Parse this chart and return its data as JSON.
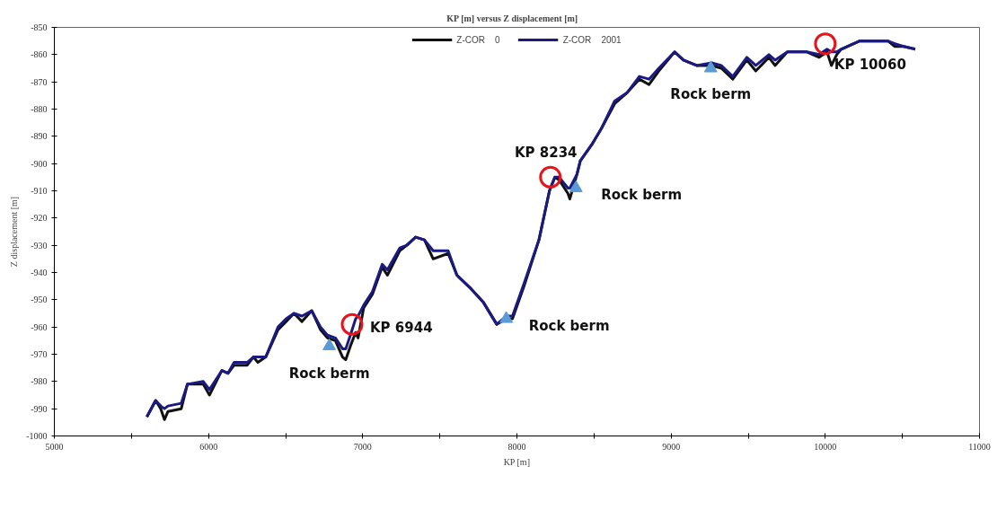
{
  "chart_data": {
    "type": "line",
    "title": "KP [m]   versus   Z displacement [m]",
    "xlabel": "KP [m]",
    "ylabel": "Z displacement [m]",
    "xlim": [
      5000,
      11000
    ],
    "ylim": [
      -1000,
      -850
    ],
    "xticks": [
      5000,
      {
        "value": 5500,
        "label": null
      },
      6000,
      {
        "value": 6500,
        "label": null
      },
      7000,
      {
        "value": 7500,
        "label": null
      },
      8000,
      {
        "value": 8500,
        "label": null
      },
      9000,
      {
        "value": 9500,
        "label": null
      },
      10000,
      {
        "value": 10500,
        "label": null
      },
      11000
    ],
    "yticks": [
      -1000,
      -990,
      -980,
      -970,
      -960,
      -950,
      -940,
      -930,
      -920,
      -910,
      -900,
      -890,
      -880,
      -870,
      -860,
      -850
    ],
    "grid": false,
    "legend": "top",
    "line_style": "solid",
    "x": [
      5600,
      5657,
      5690,
      5714,
      5737,
      5823,
      5863,
      5966,
      6006,
      6086,
      6126,
      6166,
      6251,
      6291,
      6320,
      6371,
      6451,
      6503,
      6554,
      6606,
      6669,
      6726,
      6771,
      6823,
      6869,
      6890,
      6920,
      6954,
      6970,
      7006,
      7063,
      7126,
      7160,
      7240,
      7286,
      7343,
      7400,
      7457,
      7554,
      7611,
      7703,
      7783,
      7869,
      7931,
      7971,
      8046,
      8143,
      8211,
      8246,
      8274,
      8331,
      8343,
      8389,
      8411,
      8486,
      8549,
      8634,
      8714,
      8794,
      8857,
      8920,
      9023,
      9080,
      9166,
      9263,
      9326,
      9400,
      9491,
      9549,
      9634,
      9674,
      9754,
      9880,
      9960,
      10011,
      10040,
      10074,
      10103,
      10223,
      10309,
      10406,
      10451,
      10509,
      10583
    ],
    "series": [
      {
        "name": "Z-COR    0",
        "color": "#111111",
        "values": [
          -993,
          -987,
          -990,
          -994,
          -991,
          -990,
          -981,
          -981,
          -985,
          -976,
          -977,
          -974,
          -974,
          -971,
          -973,
          -971,
          -961,
          -958,
          -955,
          -958,
          -954,
          -961,
          -964,
          -965,
          -971,
          -972,
          -967,
          -962,
          -964,
          -953,
          -948,
          -938,
          -941,
          -932,
          -930,
          -927,
          -928,
          -935,
          -933,
          -941,
          -946,
          -951,
          -959,
          -957,
          -957,
          -945,
          -928,
          -910,
          -905,
          -906,
          -911,
          -913,
          -904,
          -899,
          -893,
          -887,
          -878,
          -874,
          -869,
          -871,
          -866,
          -859,
          -862,
          -864,
          -864,
          -865,
          -869,
          -862,
          -866,
          -861,
          -864,
          -859,
          -859,
          -861,
          -859,
          -864,
          -860,
          -858,
          -855,
          -855,
          -855,
          -857,
          -857,
          -858
        ]
      },
      {
        "name": "Z-COR    2001",
        "color": "#1a1a80",
        "values": [
          -993,
          -987,
          -989,
          -990,
          -989,
          -988,
          -981,
          -980,
          -983,
          -976,
          -977,
          -973,
          -973,
          -971,
          -971,
          -971,
          -960,
          -957,
          -955,
          -956,
          -954,
          -960,
          -963,
          -964,
          -968,
          -968,
          -963,
          -957,
          -956,
          -952,
          -947,
          -937,
          -939,
          -931,
          -930,
          -927,
          -928,
          -932,
          -932,
          -941,
          -946,
          -951,
          -959,
          -956,
          -956,
          -944,
          -928,
          -910,
          -905,
          -905,
          -909,
          -909,
          -904,
          -899,
          -893,
          -887,
          -877,
          -874,
          -868,
          -869,
          -865,
          -859,
          -862,
          -864,
          -863,
          -864,
          -868,
          -861,
          -864,
          -860,
          -862,
          -859,
          -859,
          -860,
          -858,
          -859,
          -859,
          -858,
          -855,
          -855,
          -855,
          -856,
          -857,
          -858
        ]
      },
      {
        "type": "scatter",
        "marker": "triangle",
        "color": "#5b9bd5",
        "x": [
          6783,
          7931,
          8383,
          9257
        ],
        "values": [
          -967,
          -957,
          -909,
          -865
        ]
      },
      {
        "type": "scatter",
        "marker": "circle",
        "color": "#e8141b",
        "x": [
          6931,
          8217,
          10000
        ],
        "values": [
          -959,
          -905,
          -856
        ]
      }
    ],
    "annotations": [
      {
        "text": "Rock berm",
        "x": 6783,
        "y": -967
      },
      {
        "text": "Rock berm",
        "x": 7931,
        "y": -957
      },
      {
        "text": "Rock berm",
        "x": 8383,
        "y": -909
      },
      {
        "text": "Rock berm",
        "x": 9257,
        "y": -865
      },
      {
        "text": "KP 6944",
        "x": 6931,
        "y": -959
      },
      {
        "text": "KP 8234",
        "x": 8217,
        "y": -905
      },
      {
        "text": "KP 10060",
        "x": 10000,
        "y": -856
      }
    ]
  }
}
